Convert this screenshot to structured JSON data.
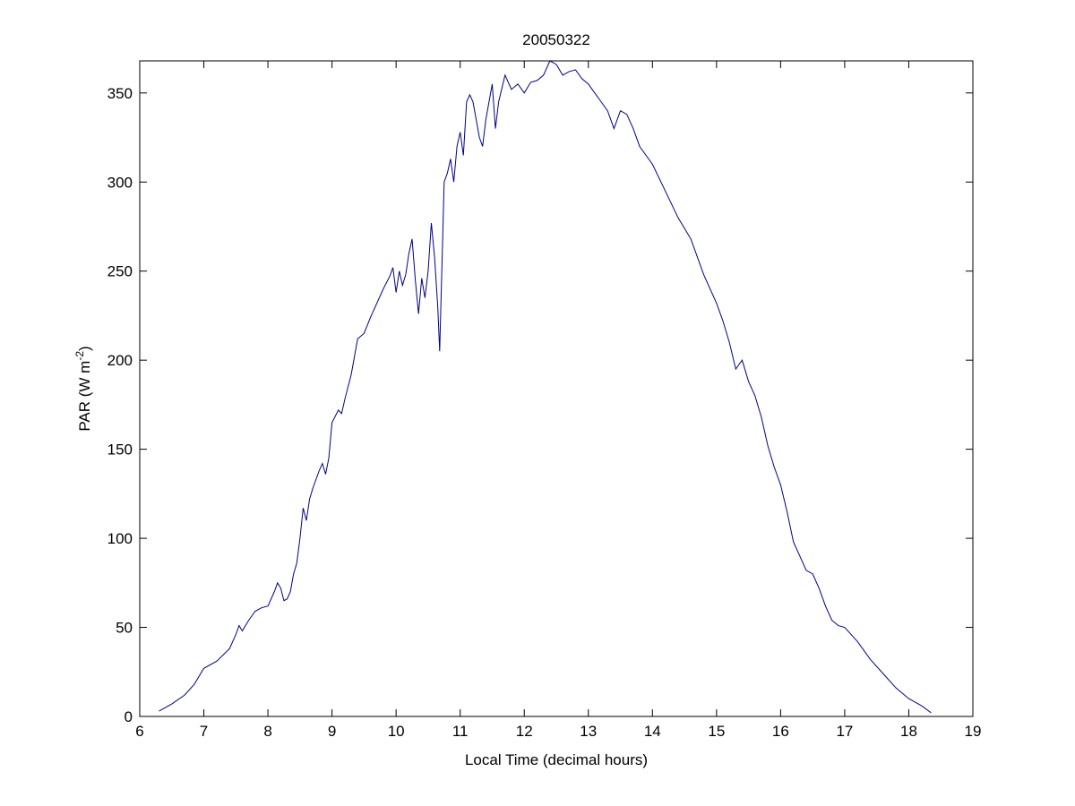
{
  "chart_data": {
    "type": "line",
    "title": "20050322",
    "x_label": "Local Time (decimal hours)",
    "y_label": {
      "text": "PAR (W m",
      "superscript": "-2",
      "suffix": ")"
    },
    "xlim": [
      6,
      19
    ],
    "ylim": [
      0,
      368
    ],
    "xticks": [
      6,
      7,
      8,
      9,
      10,
      11,
      12,
      13,
      14,
      15,
      16,
      17,
      18,
      19
    ],
    "yticks": [
      0,
      50,
      100,
      150,
      200,
      250,
      300,
      350
    ],
    "grid": false,
    "x": [
      6.3,
      6.5,
      6.7,
      6.85,
      7.0,
      7.2,
      7.4,
      7.5,
      7.55,
      7.6,
      7.7,
      7.8,
      7.9,
      8.0,
      8.1,
      8.15,
      8.2,
      8.25,
      8.3,
      8.35,
      8.4,
      8.45,
      8.5,
      8.55,
      8.6,
      8.65,
      8.7,
      8.8,
      8.85,
      8.9,
      8.95,
      9.0,
      9.1,
      9.15,
      9.2,
      9.3,
      9.4,
      9.5,
      9.6,
      9.7,
      9.8,
      9.9,
      9.95,
      10.0,
      10.05,
      10.1,
      10.15,
      10.2,
      10.25,
      10.3,
      10.35,
      10.4,
      10.45,
      10.5,
      10.55,
      10.6,
      10.65,
      10.68,
      10.75,
      10.8,
      10.85,
      10.9,
      10.95,
      11.0,
      11.05,
      11.1,
      11.15,
      11.2,
      11.3,
      11.35,
      11.4,
      11.5,
      11.55,
      11.6,
      11.7,
      11.8,
      11.9,
      12.0,
      12.1,
      12.2,
      12.3,
      12.4,
      12.5,
      12.6,
      12.7,
      12.8,
      12.9,
      13.0,
      13.1,
      13.2,
      13.3,
      13.4,
      13.5,
      13.6,
      13.7,
      13.8,
      14.0,
      14.2,
      14.4,
      14.6,
      14.8,
      15.0,
      15.1,
      15.2,
      15.3,
      15.4,
      15.5,
      15.6,
      15.7,
      15.8,
      15.9,
      16.0,
      16.1,
      16.2,
      16.3,
      16.4,
      16.5,
      16.6,
      16.7,
      16.8,
      16.9,
      17.0,
      17.2,
      17.4,
      17.6,
      17.8,
      18.0,
      18.2,
      18.35
    ],
    "series": [
      {
        "name": "PAR",
        "color": "#00008b",
        "values": [
          3,
          7,
          12,
          18,
          27,
          31,
          38,
          46,
          51,
          48,
          54,
          59,
          61,
          62,
          70,
          75,
          72,
          65,
          66,
          70,
          80,
          86,
          100,
          117,
          110,
          122,
          128,
          138,
          142,
          136,
          145,
          165,
          172,
          170,
          178,
          192,
          212,
          215,
          224,
          232,
          240,
          247,
          252,
          238,
          250,
          242,
          248,
          260,
          268,
          245,
          226,
          246,
          235,
          250,
          277,
          258,
          230,
          205,
          300,
          305,
          313,
          300,
          320,
          328,
          315,
          345,
          349,
          345,
          325,
          320,
          335,
          355,
          330,
          345,
          360,
          352,
          355,
          350,
          356,
          357,
          360,
          368,
          366,
          360,
          362,
          363,
          358,
          355,
          350,
          345,
          340,
          330,
          340,
          338,
          330,
          320,
          310,
          295,
          280,
          268,
          248,
          232,
          222,
          210,
          195,
          200,
          188,
          180,
          168,
          152,
          140,
          130,
          115,
          98,
          90,
          82,
          80,
          72,
          62,
          54,
          51,
          50,
          42,
          32,
          24,
          16,
          10,
          6,
          2
        ]
      }
    ]
  }
}
